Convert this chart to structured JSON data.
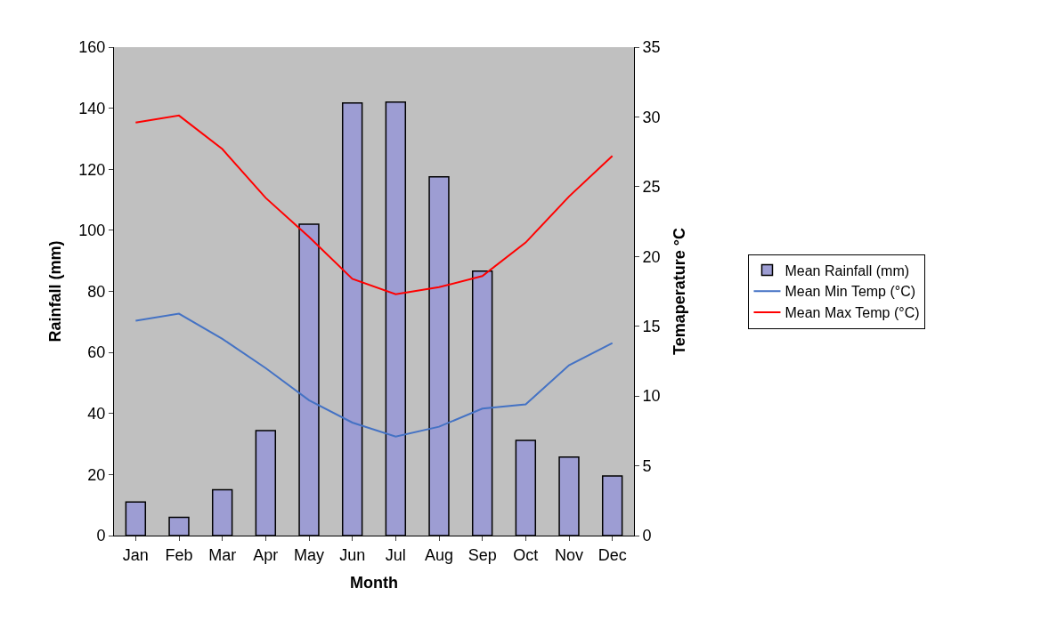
{
  "chart_data": {
    "type": "bar",
    "categories": [
      "Jan",
      "Feb",
      "Mar",
      "Apr",
      "May",
      "Jun",
      "Jul",
      "Aug",
      "Sep",
      "Oct",
      "Nov",
      "Dec"
    ],
    "series": [
      {
        "name": "Mean Rainfall (mm)",
        "color": "#9d9dd3",
        "values": [
          11,
          6,
          15,
          34.4,
          102,
          141.7,
          142,
          117.5,
          86.6,
          31.2,
          25.7,
          19.5
        ]
      },
      {
        "name": "Mean Min Temp (°C)",
        "type": "line",
        "axis": "y2",
        "color": "#4472c4",
        "values": [
          15.4,
          15.9,
          14.1,
          12.0,
          9.7,
          8.1,
          7.1,
          7.8,
          9.1,
          9.4,
          12.2,
          13.8
        ]
      },
      {
        "name": "Mean Max Temp (°C)",
        "type": "line",
        "axis": "y2",
        "color": "#ff0000",
        "values": [
          29.6,
          30.1,
          27.7,
          24.2,
          21.4,
          18.4,
          17.3,
          17.8,
          18.6,
          21.0,
          24.3,
          27.2
        ]
      }
    ],
    "xlabel": "Month",
    "ylabel": "Rainfall (mm)",
    "y2label": "Temaperature °C",
    "ylim": [
      0,
      160
    ],
    "yticks": [
      0,
      20,
      40,
      60,
      80,
      100,
      120,
      140,
      160
    ],
    "y2lim": [
      0,
      35
    ],
    "y2ticks": [
      0,
      5,
      10,
      15,
      20,
      25,
      30,
      35
    ],
    "grid": false,
    "legend": "right",
    "marker": "none",
    "line_style": "solid"
  }
}
